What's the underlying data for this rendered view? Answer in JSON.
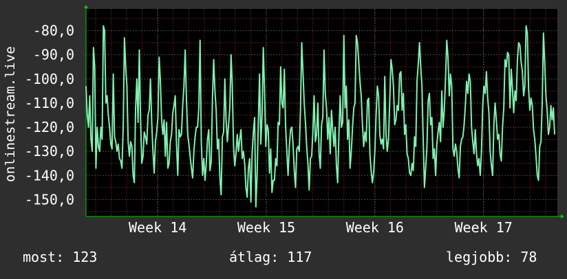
{
  "chart_data": {
    "type": "line",
    "ylabel": "onlinestream.live",
    "ylim": [
      -157,
      -71
    ],
    "yticks": [
      -80,
      -90,
      -100,
      -110,
      -120,
      -130,
      -140,
      -150
    ],
    "ytick_labels": [
      "-80,0",
      "-90,0",
      "-100,0",
      "-110,0",
      "-120,0",
      "-130,0",
      "-140,0",
      "-150,0"
    ],
    "xticks": [
      "Week 14",
      "Week 15",
      "Week 16",
      "Week 17"
    ],
    "xlim": [
      0,
      217
    ],
    "xtick_positions": [
      33,
      83,
      133,
      183
    ],
    "grid": true,
    "line_color": "#80f0b0",
    "series": [
      {
        "values": [
          -103,
          -115,
          -120,
          -107,
          -125,
          -130,
          -87,
          -95,
          -137,
          -120,
          -128,
          -130,
          -120,
          -125,
          -78,
          -80,
          -110,
          -107,
          -115,
          -120,
          -127,
          -129,
          -98,
          -124,
          -126,
          -130,
          -127,
          -133,
          -134,
          -137,
          -120,
          -83,
          -95,
          -103,
          -126,
          -132,
          -126,
          -128,
          -140,
          -143,
          -112,
          -100,
          -118,
          -88,
          -117,
          -135,
          -132,
          -122,
          -124,
          -127,
          -115,
          -113,
          -100,
          -118,
          -130,
          -139,
          -126,
          -122,
          -116,
          -91,
          -101,
          -117,
          -123,
          -117,
          -132,
          -118,
          -137,
          -135,
          -126,
          -123,
          -114,
          -111,
          -107,
          -127,
          -140,
          -121,
          -124,
          -123,
          -111,
          -103,
          -88,
          -108,
          -123,
          -127,
          -132,
          -137,
          -141,
          -130,
          -124,
          -120,
          -120,
          -112,
          -84,
          -126,
          -140,
          -133,
          -142,
          -135,
          -125,
          -121,
          -138,
          -134,
          -108,
          -92,
          -105,
          -113,
          -129,
          -125,
          -141,
          -148,
          -124,
          -122,
          -100,
          -117,
          -126,
          -119,
          -112,
          -90,
          -103,
          -128,
          -136,
          -131,
          -123,
          -130,
          -125,
          -121,
          -133,
          -130,
          -135,
          -145,
          -149,
          -137,
          -133,
          -151,
          -131,
          -122,
          -116,
          -153,
          -140,
          -118,
          -98,
          -127,
          -115,
          -87,
          -105,
          -128,
          -119,
          -121,
          -139,
          -129,
          -147,
          -142,
          -142,
          -133,
          -136,
          -118,
          -119,
          -95,
          -110,
          -112,
          -96,
          -120,
          -130,
          -140,
          -128,
          -121,
          -120,
          -127,
          -138,
          -145,
          -129,
          -128,
          -130,
          -113,
          -85,
          -97,
          -110,
          -118,
          -128,
          -135,
          -146,
          -133,
          -132,
          -122,
          -107,
          -126,
          -123,
          -110,
          -131,
          -137,
          -119,
          -116,
          -88,
          -106,
          -112,
          -125,
          -116,
          -131,
          -113,
          -121,
          -128,
          -120,
          -136,
          -143,
          -123,
          -107,
          -120,
          -118,
          -82,
          -112,
          -103,
          -125,
          -117,
          -137,
          -130,
          -120,
          -112,
          -110,
          -82,
          -85,
          -93,
          -101,
          -107,
          -119,
          -128,
          -122,
          -126,
          -109,
          -108,
          -131,
          -138,
          -143,
          -139,
          -130,
          -115,
          -103,
          -107,
          -123,
          -127,
          -125,
          -129,
          -99,
          -123,
          -130,
          -125,
          -109,
          -92,
          -96,
          -103,
          -119,
          -117,
          -111,
          -113,
          -98,
          -97,
          -113,
          -106,
          -123,
          -119,
          -131,
          -133,
          -139,
          -140,
          -135,
          -138,
          -124,
          -128,
          -101,
          -94,
          -85,
          -95,
          -103,
          -125,
          -145,
          -137,
          -128,
          -109,
          -106,
          -119,
          -116,
          -133,
          -129,
          -140,
          -127,
          -122,
          -118,
          -126,
          -105,
          -120,
          -113,
          -100,
          -84,
          -91,
          -107,
          -98,
          -103,
          -129,
          -132,
          -127,
          -130,
          -137,
          -141,
          -128,
          -125,
          -124,
          -119,
          -111,
          -101,
          -106,
          -98,
          -101,
          -120,
          -126,
          -131,
          -121,
          -131,
          -136,
          -133,
          -140,
          -130,
          -111,
          -103,
          -106,
          -97,
          -108,
          -114,
          -130,
          -136,
          -140,
          -119,
          -110,
          -117,
          -125,
          -123,
          -131,
          -134,
          -120,
          -112,
          -92,
          -95,
          -89,
          -90,
          -112,
          -96,
          -104,
          -114,
          -105,
          -109,
          -92,
          -85,
          -86,
          -93,
          -97,
          -107,
          -103,
          -78,
          -81,
          -104,
          -113,
          -108,
          -111,
          -121,
          -125,
          -132,
          -140,
          -142,
          -128,
          -126,
          -110,
          -81,
          -93,
          -107,
          -113,
          -123,
          -120,
          -111,
          -117,
          -112,
          -123
        ]
      }
    ]
  },
  "stats": {
    "current": "most: 123",
    "average": "átlag: 117",
    "max": "legjobb: 78"
  },
  "colors": {
    "background": "#2e2e2e",
    "plot_background": "#000000",
    "grid": "#4a4a4a",
    "grid_dotted": "#8a2f2f",
    "axis_arrow": "#00cc00",
    "text": "#ffffff",
    "line": "#80f0b0"
  }
}
